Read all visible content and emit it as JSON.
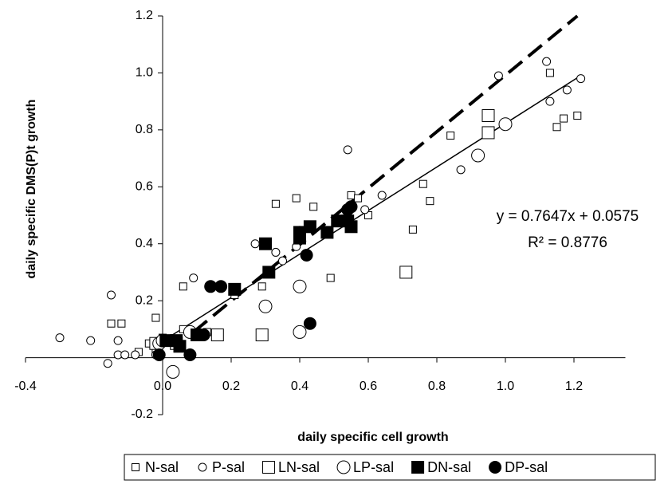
{
  "chart_data": {
    "type": "scatter",
    "x_label": "daily specific cell growth",
    "y_label": "daily specific DMS(P)t growth",
    "xlim": [
      -0.4,
      1.35
    ],
    "ylim": [
      -0.2,
      1.2
    ],
    "xticks": [
      -0.4,
      {
        "value": 0,
        "label": "0.0"
      },
      0.2,
      0.4,
      0.6,
      0.8,
      {
        "value": 1,
        "label": "1.0"
      },
      1.2
    ],
    "yticks": [
      -0.2,
      0.2,
      0.4,
      0.6,
      0.8,
      {
        "value": 1,
        "label": "1.0"
      },
      1.2
    ],
    "annotations": [
      "y = 0.7647x + 0.0575",
      "R² = 0.8776"
    ],
    "trend_line": {
      "x": [
        0.0,
        1.21
      ],
      "y": [
        0.058,
        0.983
      ],
      "style": "solid"
    },
    "reference_line": {
      "x": [
        0.09,
        1.21
      ],
      "y": [
        0.09,
        1.2
      ],
      "style": "dashed"
    },
    "legend": "bottom",
    "series": [
      {
        "name": "N-sal",
        "color": "#000000",
        "marker": "square",
        "size": "small",
        "filled": false,
        "x": [
          -0.15,
          -0.12,
          -0.02,
          0.06,
          0.06,
          -0.07,
          -0.04,
          -0.02,
          0.0,
          0.33,
          0.39,
          0.44,
          0.4,
          0.48,
          0.49,
          0.29,
          0.21,
          0.55,
          0.57,
          0.6,
          0.76,
          0.78,
          0.73,
          0.84,
          1.13,
          1.15,
          1.17,
          1.21,
          0.13
        ],
        "values": [
          0.12,
          0.12,
          0.14,
          0.25,
          0.1,
          0.02,
          0.05,
          0.03,
          0.07,
          0.54,
          0.56,
          0.53,
          0.43,
          0.44,
          0.28,
          0.25,
          0.22,
          0.57,
          0.56,
          0.5,
          0.61,
          0.55,
          0.45,
          0.78,
          1.0,
          0.81,
          0.84,
          0.85,
          0.09
        ]
      },
      {
        "name": "P-sal",
        "color": "#000000",
        "marker": "circle",
        "size": "small",
        "filled": false,
        "x": [
          -0.3,
          -0.21,
          -0.15,
          -0.13,
          -0.16,
          -0.13,
          -0.11,
          -0.08,
          0.09,
          0.27,
          0.33,
          0.35,
          0.39,
          0.54,
          0.59,
          0.64,
          0.87,
          0.98,
          1.12,
          1.13,
          1.18,
          1.22,
          -0.02
        ],
        "values": [
          0.07,
          0.06,
          0.22,
          0.06,
          -0.02,
          0.01,
          0.01,
          0.01,
          0.28,
          0.4,
          0.37,
          0.34,
          0.39,
          0.73,
          0.52,
          0.57,
          0.66,
          0.99,
          1.04,
          0.9,
          0.94,
          0.98,
          0.01
        ]
      },
      {
        "name": "LN-sal",
        "color": "#000000",
        "marker": "square",
        "size": "large",
        "filled": false,
        "x": [
          -0.02,
          0.1,
          0.16,
          0.29,
          0.71,
          0.95,
          0.95,
          0.04
        ],
        "values": [
          0.05,
          0.08,
          0.08,
          0.08,
          0.3,
          0.85,
          0.79,
          0.05
        ]
      },
      {
        "name": "LP-sal",
        "color": "#000000",
        "marker": "circle",
        "size": "large",
        "filled": false,
        "x": [
          -0.01,
          0.03,
          0.3,
          0.4,
          0.4,
          0.92,
          1.0,
          0.08,
          0.0
        ],
        "values": [
          0.05,
          -0.05,
          0.18,
          0.09,
          0.25,
          0.71,
          0.82,
          0.09,
          0.06
        ]
      },
      {
        "name": "DN-sal",
        "color": "#000000",
        "marker": "square",
        "size": "large",
        "filled": true,
        "x": [
          0.01,
          0.04,
          0.05,
          0.1,
          0.21,
          0.3,
          0.31,
          0.4,
          0.4,
          0.43,
          0.48,
          0.51,
          0.55,
          0.54
        ],
        "values": [
          0.06,
          0.06,
          0.04,
          0.08,
          0.24,
          0.4,
          0.3,
          0.42,
          0.44,
          0.46,
          0.44,
          0.48,
          0.46,
          0.48
        ]
      },
      {
        "name": "DP-sal",
        "color": "#000000",
        "marker": "circle",
        "size": "large",
        "filled": true,
        "x": [
          -0.01,
          0.08,
          0.12,
          0.14,
          0.17,
          0.4,
          0.42,
          0.43,
          0.54,
          0.55,
          0.03
        ],
        "values": [
          0.01,
          0.01,
          0.08,
          0.25,
          0.25,
          0.44,
          0.36,
          0.12,
          0.52,
          0.53,
          0.06
        ]
      }
    ]
  }
}
